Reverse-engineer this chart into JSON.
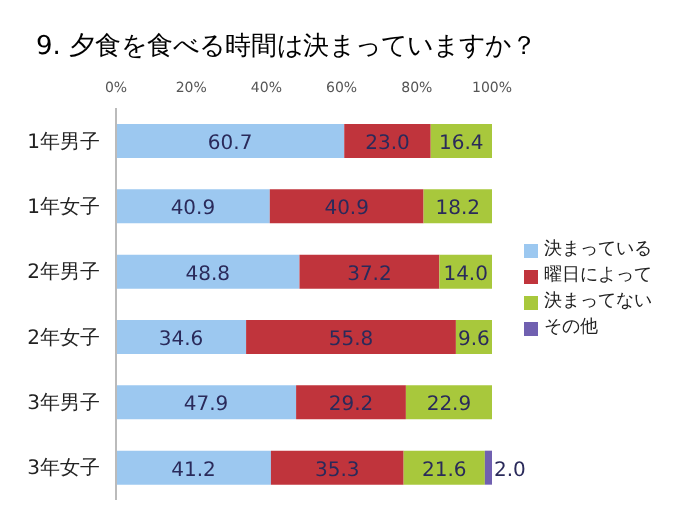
{
  "chart_data": {
    "type": "bar",
    "orientation": "horizontal",
    "stacked": true,
    "title": "9. 夕食を食べる時間は決まっていますか？",
    "categories": [
      "1年男子",
      "1年女子",
      "2年男子",
      "2年女子",
      "3年男子",
      "3年女子"
    ],
    "series": [
      {
        "name": "決まっている",
        "color": "#9cc8f0",
        "values": [
          60.7,
          40.9,
          48.8,
          34.6,
          47.9,
          41.2
        ],
        "value_labels": [
          "60.7",
          "40.9",
          "48.8",
          "34.6",
          "47.9",
          "41.2"
        ]
      },
      {
        "name": "曜日によって",
        "color": "#c0343c",
        "values": [
          23.0,
          40.9,
          37.2,
          55.8,
          29.2,
          35.3
        ],
        "value_labels": [
          "23.0",
          "40.9",
          "37.2",
          "55.8",
          "29.2",
          "35.3"
        ]
      },
      {
        "name": "決まってない",
        "color": "#a8c83c",
        "values": [
          16.4,
          18.2,
          14.0,
          9.6,
          22.9,
          21.6
        ],
        "value_labels": [
          "16.4",
          "18.2",
          "14.0",
          "9.6",
          "22.9",
          "21.6"
        ]
      },
      {
        "name": "その他",
        "color": "#7060b0",
        "values": [
          null,
          null,
          null,
          null,
          null,
          2.0
        ],
        "value_labels": [
          null,
          null,
          null,
          null,
          null,
          "2.0"
        ]
      }
    ],
    "xlim": [
      0,
      100
    ],
    "xticks": [
      {
        "value": 0,
        "label": "0%"
      },
      {
        "value": 20,
        "label": "20%"
      },
      {
        "value": 40,
        "label": "40%"
      },
      {
        "value": 60,
        "label": "60%"
      },
      {
        "value": 80,
        "label": "80%"
      },
      {
        "value": 100,
        "label": "100%"
      }
    ],
    "grid": false,
    "legend": "right"
  }
}
